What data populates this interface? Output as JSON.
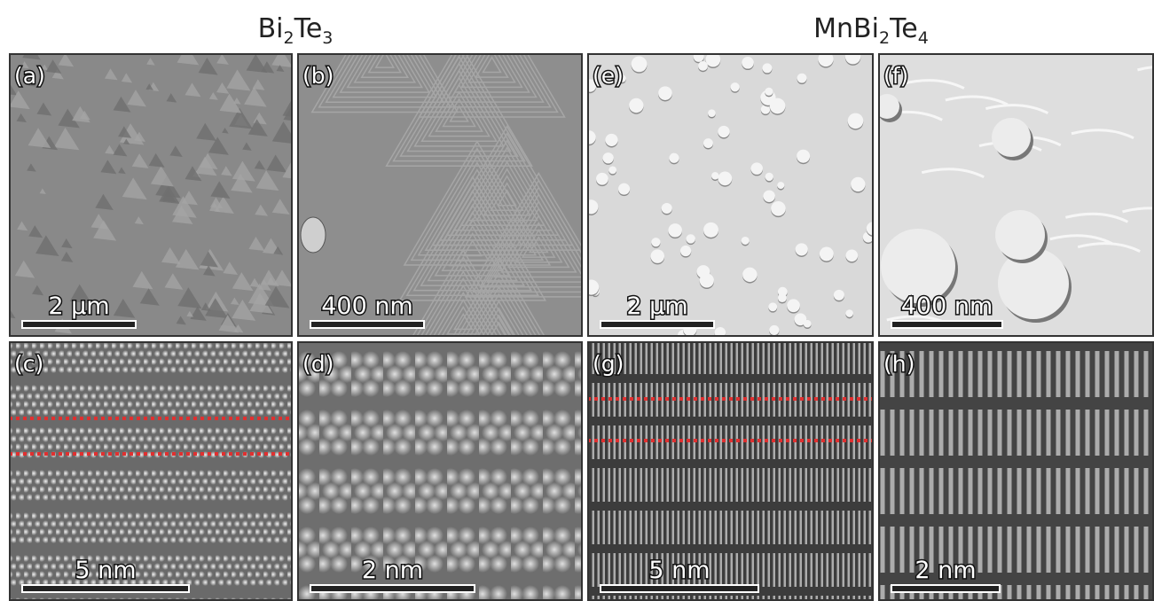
{
  "headers": [
    [
      "Bi",
      "2",
      "Te",
      "3"
    ],
    [
      "MnBi",
      "2",
      "Te",
      "4"
    ]
  ],
  "panels": [
    {
      "label": "(a)",
      "scale": "2 µm"
    },
    {
      "label": "(b)",
      "scale": "400 nm"
    },
    {
      "label": "(e)",
      "scale": "2 µm"
    },
    {
      "label": "(f)",
      "scale": "400 nm"
    },
    {
      "label": "(c)",
      "scale": "5 nm"
    },
    {
      "label": "(d)",
      "scale": "2 nm"
    },
    {
      "label": "(g)",
      "scale": "5 nm"
    },
    {
      "label": "(h)",
      "scale": "2 nm"
    }
  ]
}
